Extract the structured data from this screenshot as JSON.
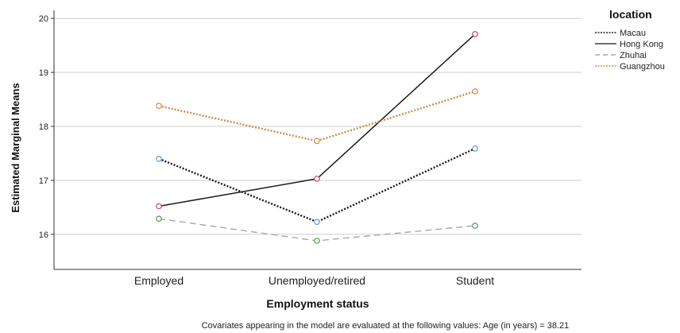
{
  "chart_data": {
    "type": "line",
    "xlabel": "Employment status",
    "ylabel": "Estimated Marginal Means",
    "categories": [
      "Employed",
      "Unemployed/retired",
      "Student"
    ],
    "yticks": [
      "16",
      "17",
      "18",
      "19",
      "20"
    ],
    "ylim": [
      15.35,
      20.15
    ],
    "grid": "horizontal",
    "legend_title": "location",
    "legend_position": "top-right",
    "series": [
      {
        "name": "Macau",
        "values": [
          17.4,
          16.23,
          17.59
        ],
        "color": "#1a1a1a",
        "style": "dotted",
        "marker_color": "#5b9bd5"
      },
      {
        "name": "Hong Kong",
        "values": [
          16.52,
          17.03,
          19.71
        ],
        "color": "#1a1a1a",
        "style": "solid",
        "marker_color": "#c9445f"
      },
      {
        "name": "Zhuhai",
        "values": [
          16.29,
          15.88,
          16.16
        ],
        "color": "#a8a8a8",
        "style": "dashed",
        "marker_color": "#4a9a4a"
      },
      {
        "name": "Guangzhou",
        "values": [
          18.38,
          17.73,
          18.65
        ],
        "color": "#d38a42",
        "style": "dotted",
        "marker_color": "#d38a42"
      }
    ],
    "footnote": "Covariates appearing in the model are evaluated at the following values: Age (in years) = 38.21"
  }
}
